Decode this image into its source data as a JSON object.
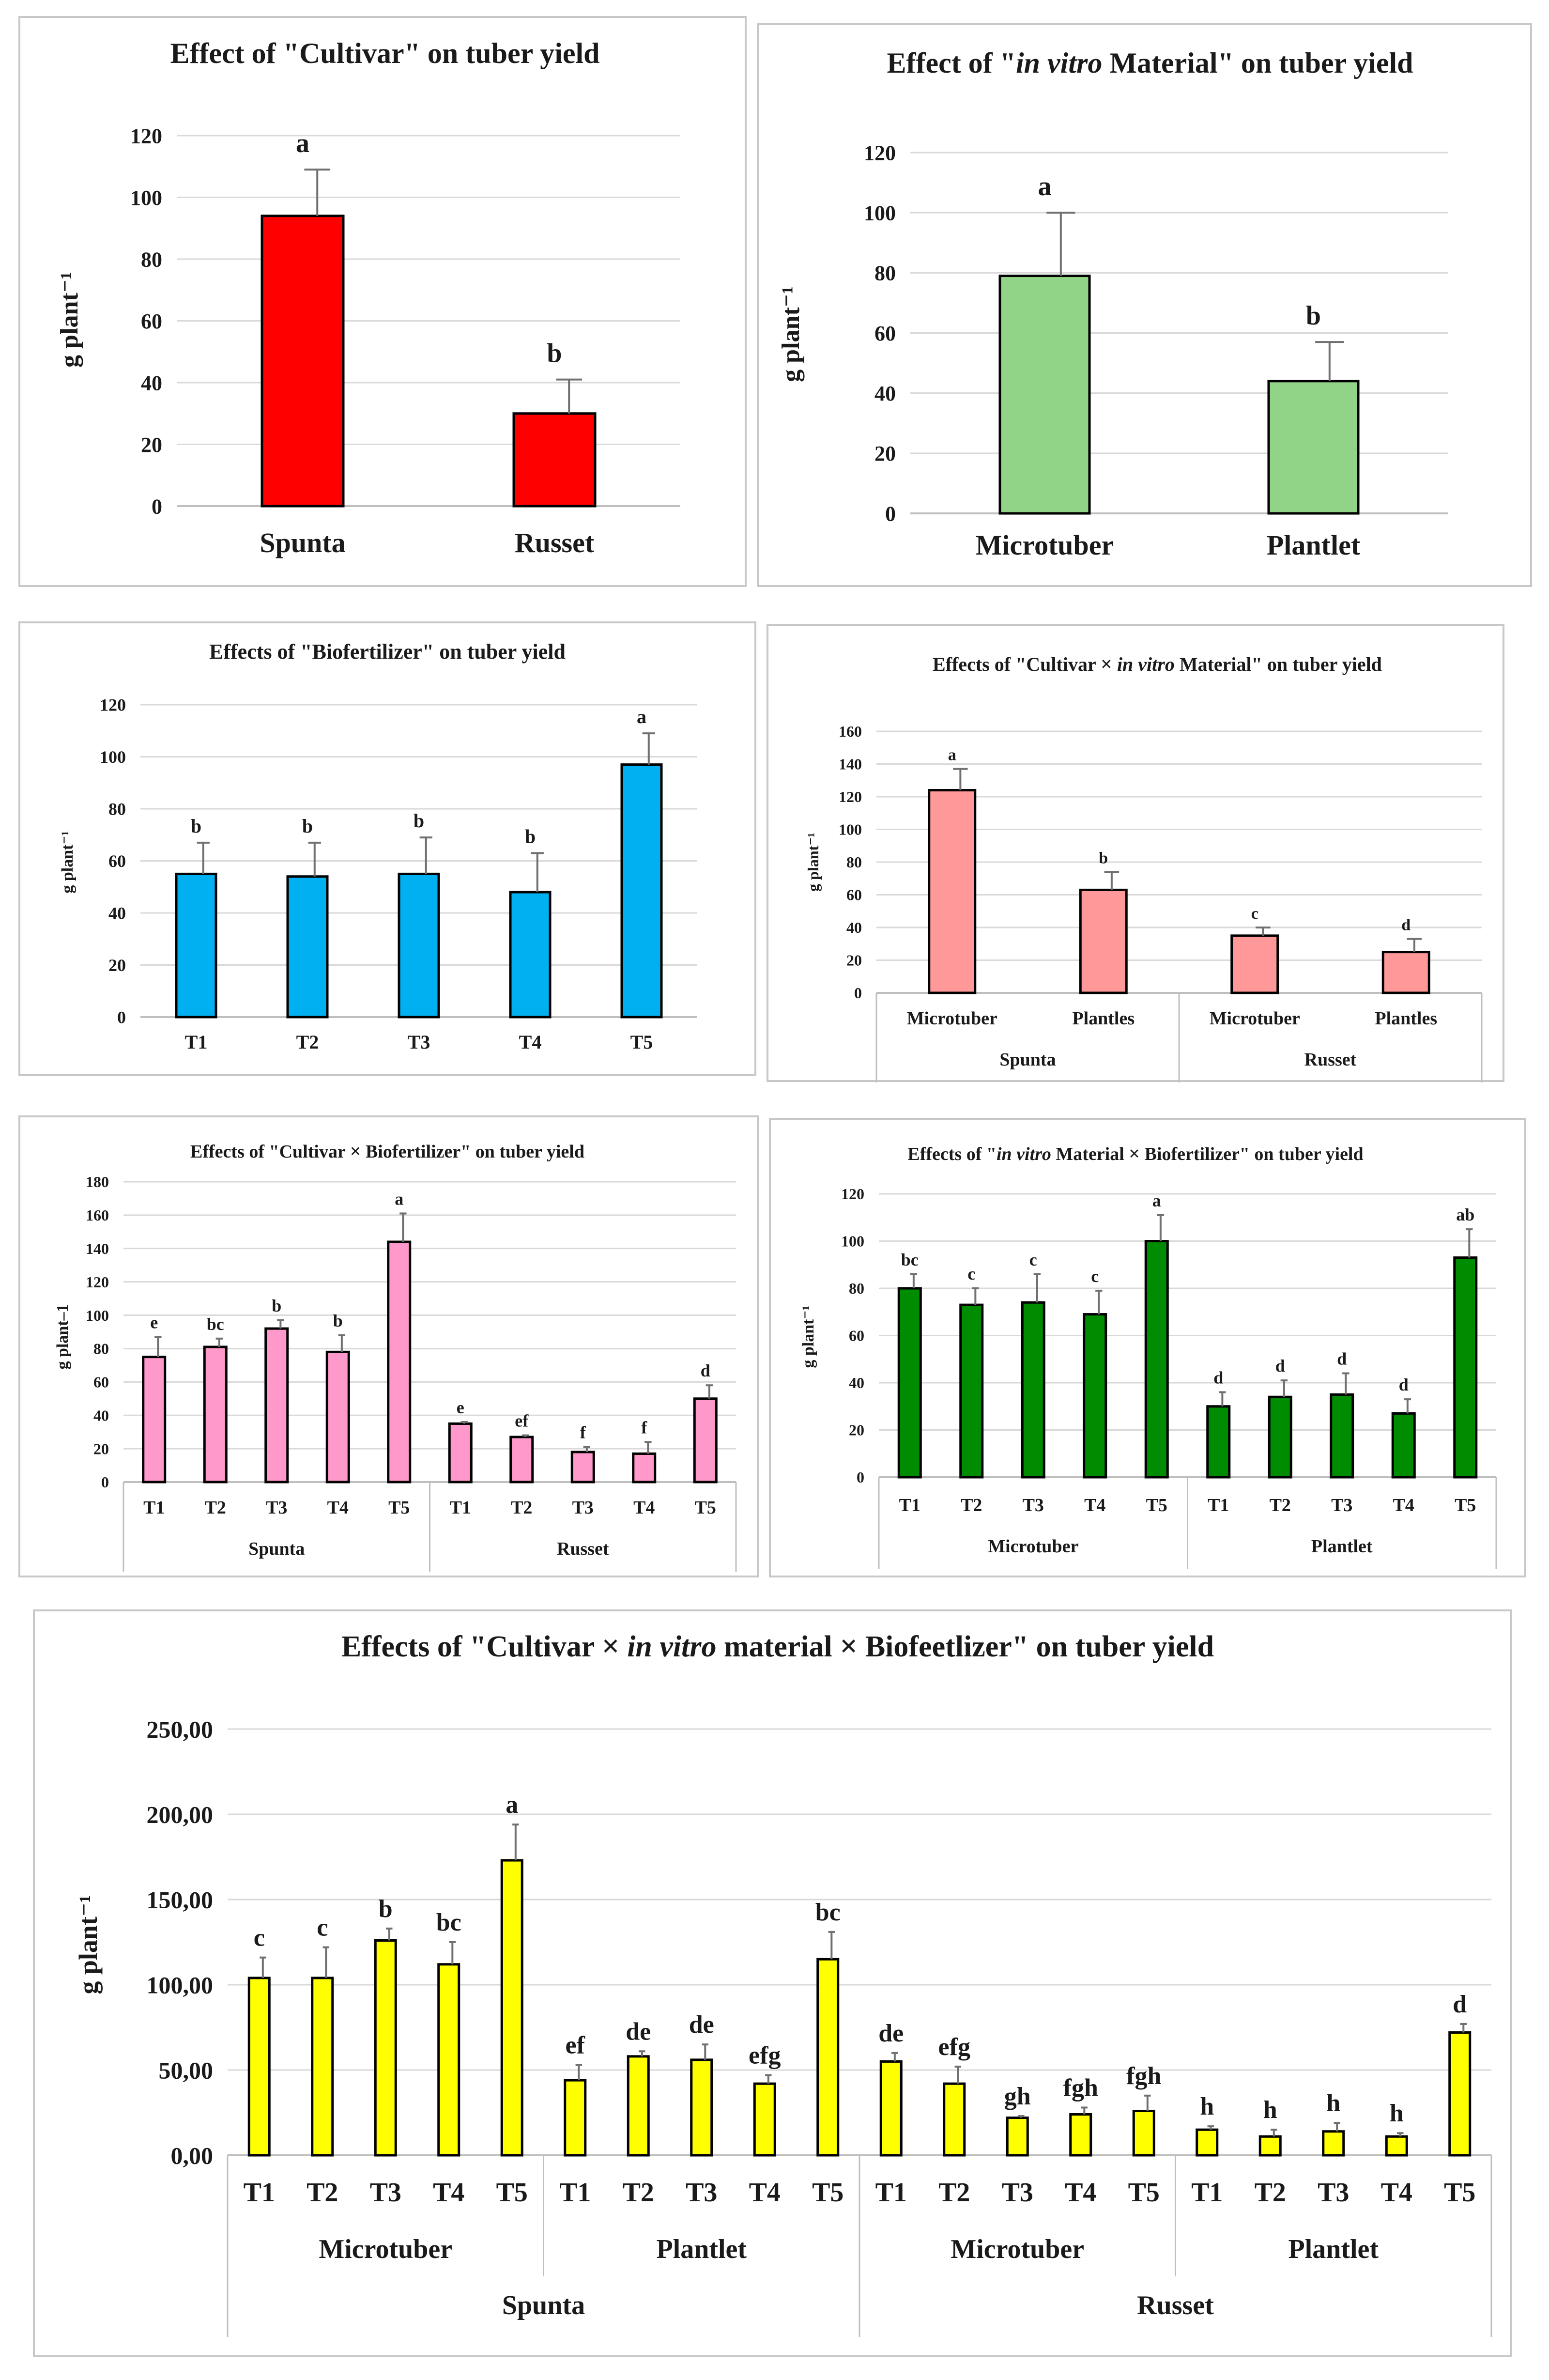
{
  "chart_data": [
    {
      "type": "bar",
      "title": "Effect of \"Cultivar\" on tuber yield",
      "ylabel": "g plant⁻¹",
      "ylim": [
        0,
        120
      ],
      "yticks": [
        "0",
        "20",
        "40",
        "60",
        "80",
        "100",
        "120"
      ],
      "categories": [
        "Spunta",
        "Russet"
      ],
      "values": [
        94,
        30
      ],
      "errors": [
        15,
        11
      ],
      "letters": [
        "a",
        "b"
      ],
      "color": "#ff0000"
    },
    {
      "type": "bar",
      "title": "Effect of \"in vitro Material\" on tuber yield",
      "ylabel": "g plant⁻¹",
      "ylim": [
        0,
        120
      ],
      "yticks": [
        "0",
        "20",
        "40",
        "60",
        "80",
        "100",
        "120"
      ],
      "categories": [
        "Microtuber",
        "Plantlet"
      ],
      "values": [
        79,
        44
      ],
      "errors": [
        21,
        13
      ],
      "letters": [
        "a",
        "b"
      ],
      "color": "#92d487"
    },
    {
      "type": "bar",
      "title": "Effects of \"Biofertilizer\" on tuber yield",
      "ylabel": "g plant⁻¹",
      "ylim": [
        0,
        120
      ],
      "yticks": [
        "0",
        "20",
        "40",
        "60",
        "80",
        "100",
        "120"
      ],
      "categories": [
        "T1",
        "T2",
        "T3",
        "T4",
        "T5"
      ],
      "values": [
        55,
        54,
        55,
        48,
        97
      ],
      "errors": [
        12,
        13,
        14,
        15,
        12
      ],
      "letters": [
        "b",
        "b",
        "b",
        "b",
        "a"
      ],
      "color": "#00b0f0"
    },
    {
      "type": "bar",
      "title": "Effects of \"Cultivar × in vitro Material\" on tuber yield",
      "ylabel": "g plant⁻¹",
      "ylim": [
        0,
        160
      ],
      "yticks": [
        "0",
        "20",
        "40",
        "60",
        "80",
        "100",
        "120",
        "140",
        "160"
      ],
      "categories": [
        "Microtuber",
        "Plantles",
        "Microtuber",
        "Plantles"
      ],
      "groups": [
        "Spunta",
        "Russet"
      ],
      "values": [
        124,
        63,
        35,
        25
      ],
      "errors": [
        13,
        11,
        5,
        8
      ],
      "letters": [
        "a",
        "b",
        "c",
        "d"
      ],
      "color": "#ff9999"
    },
    {
      "type": "bar",
      "title": "Effects of \"Cultivar × Biofertilizer\" on tuber yield",
      "ylabel": "g plant–1",
      "ylim": [
        0,
        180
      ],
      "yticks": [
        "0",
        "20",
        "40",
        "60",
        "80",
        "100",
        "120",
        "140",
        "160",
        "180"
      ],
      "categories": [
        "T1",
        "T2",
        "T3",
        "T4",
        "T5",
        "T1",
        "T2",
        "T3",
        "T4",
        "T5"
      ],
      "groups": [
        "Spunta",
        "Russet"
      ],
      "values": [
        75,
        81,
        92,
        78,
        144,
        35,
        27,
        18,
        17,
        50
      ],
      "errors": [
        12,
        5,
        5,
        10,
        17,
        1,
        1,
        3,
        7,
        8
      ],
      "letters": [
        "e",
        "bc",
        "b",
        "b",
        "a",
        "e",
        "ef",
        "f",
        "f",
        "d"
      ],
      "color": "#ff99cc"
    },
    {
      "type": "bar",
      "title": "Effects of \"in vitro Material × Biofertilizer\" on tuber yield",
      "ylabel": "g plant⁻¹",
      "ylim": [
        0,
        120
      ],
      "yticks": [
        "0",
        "20",
        "40",
        "60",
        "80",
        "100",
        "120"
      ],
      "categories": [
        "T1",
        "T2",
        "T3",
        "T4",
        "T5",
        "T1",
        "T2",
        "T3",
        "T4",
        "T5"
      ],
      "groups": [
        "Microtuber",
        "Plantlet"
      ],
      "values": [
        80,
        73,
        74,
        69,
        100,
        30,
        34,
        35,
        27,
        93
      ],
      "errors": [
        6,
        7,
        12,
        10,
        11,
        6,
        7,
        9,
        6,
        12
      ],
      "letters": [
        "bc",
        "c",
        "c",
        "c",
        "a",
        "d",
        "d",
        "d",
        "d",
        "ab"
      ],
      "color": "#008c00"
    },
    {
      "type": "bar",
      "title": "Effects of \"Cultivar × in vitro material × Biofeetlizer\" on tuber yield",
      "ylabel": "g plant⁻¹",
      "ylim": [
        0,
        250
      ],
      "yticks": [
        "0,00",
        "50,00",
        "100,00",
        "150,00",
        "200,00",
        "250,00"
      ],
      "categories": [
        "T1",
        "T2",
        "T3",
        "T4",
        "T5",
        "T1",
        "T2",
        "T3",
        "T4",
        "T5",
        "T1",
        "T2",
        "T3",
        "T4",
        "T5",
        "T1",
        "T2",
        "T3",
        "T4",
        "T5"
      ],
      "subgroups": [
        "Microtuber",
        "Plantlet",
        "Microtuber",
        "Plantlet"
      ],
      "groups": [
        "Spunta",
        "Russet"
      ],
      "values": [
        104,
        104,
        126,
        112,
        173,
        44,
        58,
        56,
        42,
        115,
        55,
        42,
        22,
        24,
        26,
        15,
        11,
        14,
        11,
        72
      ],
      "errors": [
        12,
        18,
        7,
        13,
        21,
        9,
        3,
        9,
        5,
        16,
        5,
        10,
        1,
        4,
        9,
        2,
        4,
        5,
        2,
        5
      ],
      "letters": [
        "c",
        "c",
        "b",
        "bc",
        "a",
        "ef",
        "de",
        "de",
        "efg",
        "bc",
        "de",
        "efg",
        "gh",
        "fgh",
        "fgh",
        "h",
        "h",
        "h",
        "h",
        "d"
      ],
      "color": "#ffff00"
    }
  ]
}
